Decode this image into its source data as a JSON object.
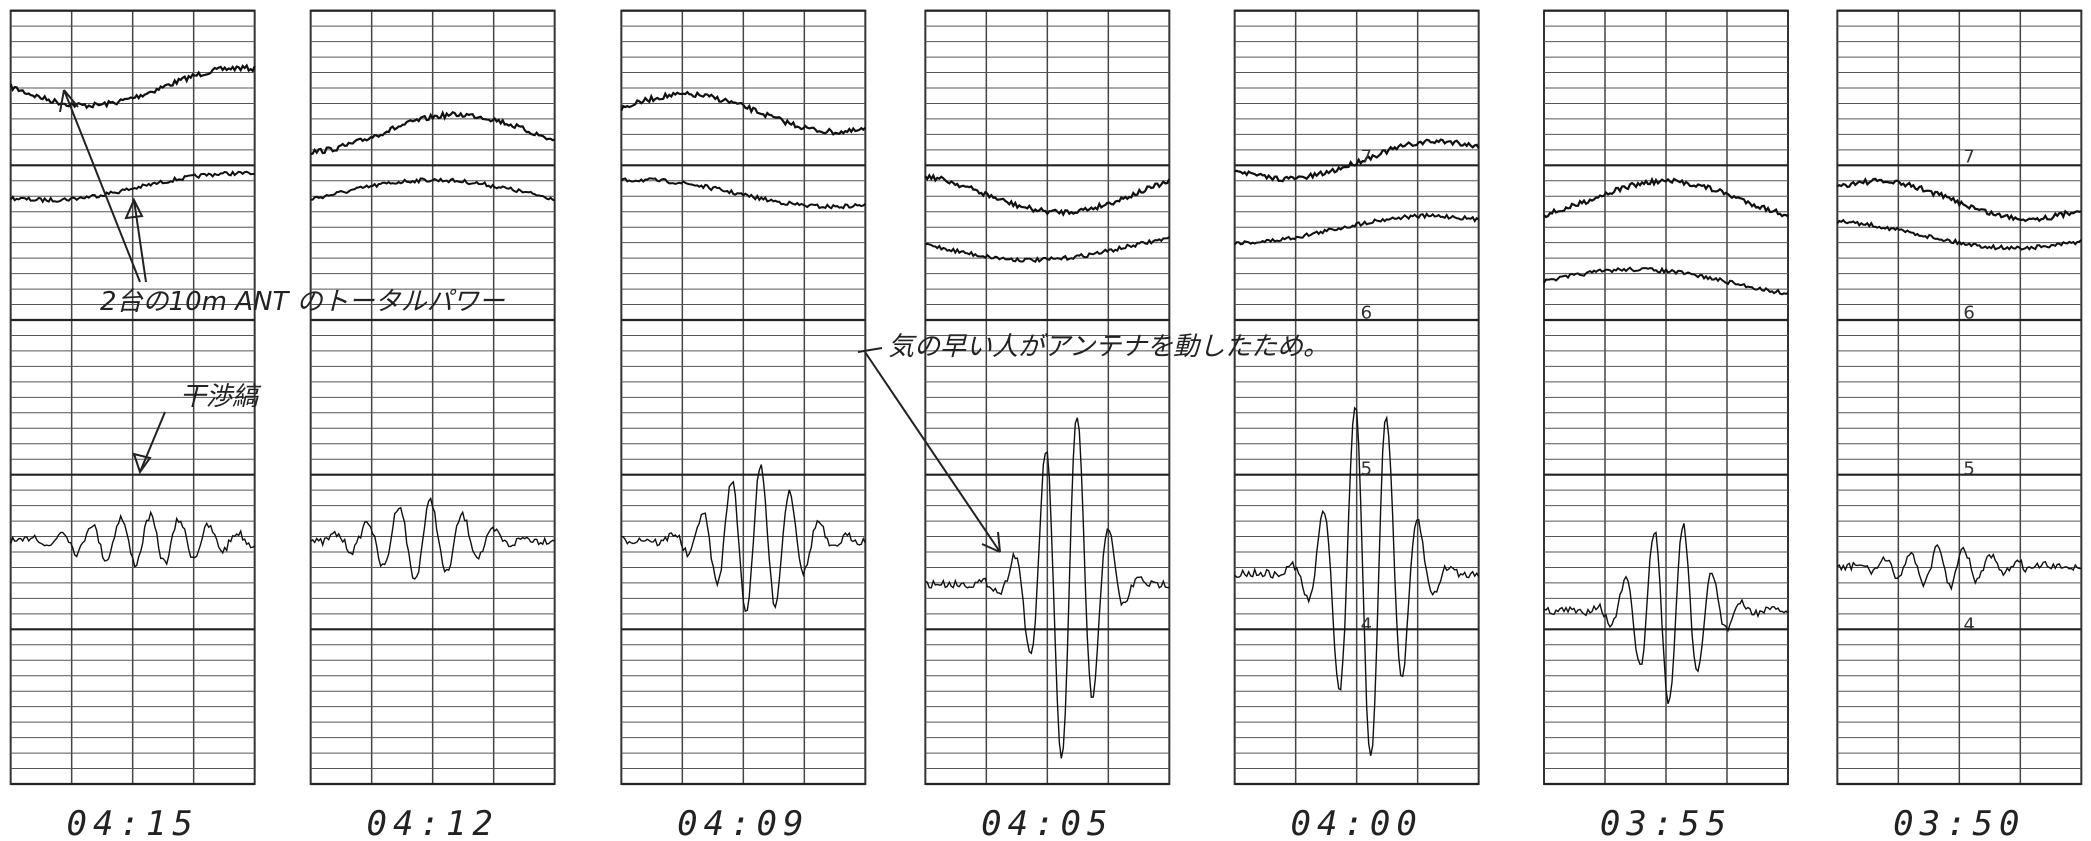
{
  "panels": [
    {
      "time": "04:15"
    },
    {
      "time": "04:12"
    },
    {
      "time": "04:09"
    },
    {
      "time": "04:05"
    },
    {
      "time": "04:00"
    },
    {
      "time": "03:55"
    },
    {
      "time": "03:50"
    }
  ],
  "annotations": {
    "total_power": "2台の10m ANT のトータルパワー",
    "fringes": "干渉縞",
    "antenna_moved": "気の早い人がアンテナを動したため。"
  },
  "scale_marks": [
    "7",
    "6",
    "5",
    "4"
  ]
}
